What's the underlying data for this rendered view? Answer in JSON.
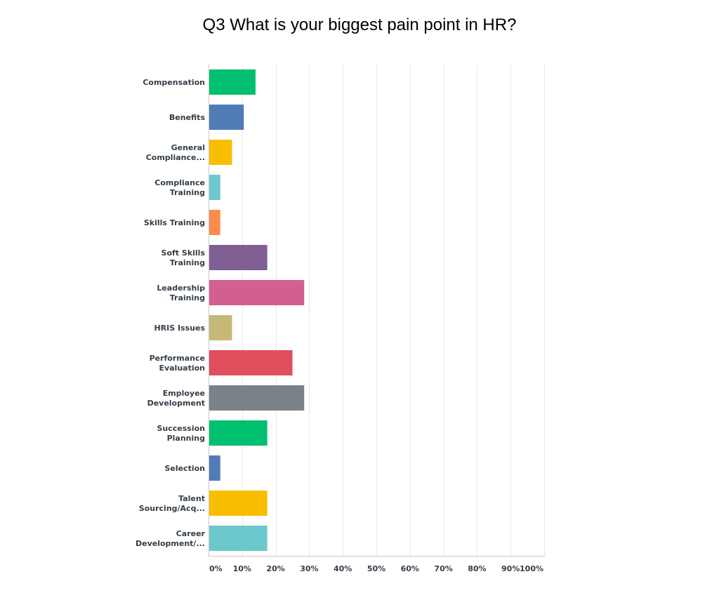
{
  "chart_data": {
    "type": "bar",
    "orientation": "horizontal",
    "title": "Q3 What is your biggest pain point in HR?",
    "categories": [
      [
        "Compensation"
      ],
      [
        "Benefits"
      ],
      [
        "General",
        "Compliance..."
      ],
      [
        "Compliance",
        "Training"
      ],
      [
        "Skills Training"
      ],
      [
        "Soft Skills",
        "Training"
      ],
      [
        "Leadership",
        "Training"
      ],
      [
        "HRIS Issues"
      ],
      [
        "Performance",
        "Evaluation"
      ],
      [
        "Employee",
        "Development"
      ],
      [
        "Succession",
        "Planning"
      ],
      [
        "Selection"
      ],
      [
        "Talent",
        "Sourcing/Acq..."
      ],
      [
        "Career",
        "Development/..."
      ]
    ],
    "values": [
      14,
      10.5,
      7,
      3.5,
      3.5,
      17.5,
      28.5,
      7,
      25,
      28.5,
      17.5,
      3.5,
      17.5,
      17.5
    ],
    "colors": [
      "#00bf6f",
      "#507cb6",
      "#f9be00",
      "#6bc8cd",
      "#ff8b4f",
      "#7f5e94",
      "#d25f90",
      "#c8b878",
      "#e04e5e",
      "#7a8288",
      "#00bf6f",
      "#507cb6",
      "#f9be00",
      "#6bc8cd"
    ],
    "xlim": [
      0,
      100
    ],
    "xticks": [
      0,
      10,
      20,
      30,
      40,
      50,
      60,
      70,
      80,
      90,
      100
    ],
    "xtick_labels": [
      "0%",
      "10%",
      "20%",
      "30%",
      "40%",
      "50%",
      "60%",
      "70%",
      "80%",
      "90%",
      "100%"
    ],
    "grid": true,
    "gridline_color": "#e8e8e8",
    "axis_color": "#c8c8c8"
  }
}
